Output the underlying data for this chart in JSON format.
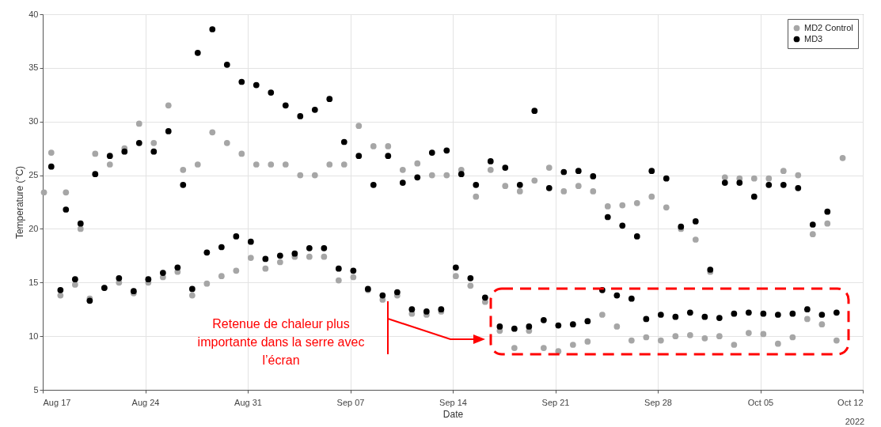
{
  "chart_data": {
    "type": "scatter",
    "xlabel": "Date",
    "ylabel": "Temperature (°C)",
    "xlim": [
      "2022-08-17",
      "2022-10-12"
    ],
    "xticks": [
      {
        "value": "2022-08-17",
        "label": "Aug 17"
      },
      {
        "value": "2022-08-24",
        "label": "Aug 24"
      },
      {
        "value": "2022-08-31",
        "label": "Aug 31"
      },
      {
        "value": "2022-09-07",
        "label": "Sep 07"
      },
      {
        "value": "2022-09-14",
        "label": "Sep 14"
      },
      {
        "value": "2022-09-21",
        "label": "Sep 21"
      },
      {
        "value": "2022-09-28",
        "label": "Sep 28"
      },
      {
        "value": "2022-10-05",
        "label": "Oct 05"
      },
      {
        "value": "2022-10-12",
        "label": "Oct 12"
      }
    ],
    "ylim": [
      5,
      40
    ],
    "yticks": [
      5,
      10,
      15,
      20,
      25,
      30,
      35,
      40
    ],
    "grid": true,
    "legend": "top right",
    "marker": "circle",
    "series": [
      {
        "name": "MD2 Control",
        "color": "#a6a6a6",
        "x": [
          "2022-08-17T02:00",
          "2022-08-17T14:00",
          "2022-08-18T05:00",
          "2022-08-18T14:00",
          "2022-08-19T05:00",
          "2022-08-19T14:00",
          "2022-08-20T05:00",
          "2022-08-20T14:00",
          "2022-08-21T05:00",
          "2022-08-21T14:00",
          "2022-08-22T05:00",
          "2022-08-22T14:00",
          "2022-08-23T05:00",
          "2022-08-23T14:00",
          "2022-08-24T05:00",
          "2022-08-24T14:00",
          "2022-08-25T05:00",
          "2022-08-25T14:00",
          "2022-08-26T05:00",
          "2022-08-26T14:00",
          "2022-08-27T05:00",
          "2022-08-27T14:00",
          "2022-08-28T05:00",
          "2022-08-28T14:00",
          "2022-08-29T05:00",
          "2022-08-29T14:00",
          "2022-08-30T05:00",
          "2022-08-30T14:00",
          "2022-08-31T05:00",
          "2022-08-31T14:00",
          "2022-09-01T05:00",
          "2022-09-01T14:00",
          "2022-09-02T05:00",
          "2022-09-02T14:00",
          "2022-09-03T05:00",
          "2022-09-03T14:00",
          "2022-09-04T05:00",
          "2022-09-04T14:00",
          "2022-09-05T05:00",
          "2022-09-05T14:00",
          "2022-09-06T05:00",
          "2022-09-06T14:00",
          "2022-09-07T05:00",
          "2022-09-07T14:00",
          "2022-09-08T05:00",
          "2022-09-08T14:00",
          "2022-09-09T05:00",
          "2022-09-09T14:00",
          "2022-09-10T05:00",
          "2022-09-10T14:00",
          "2022-09-11T05:00",
          "2022-09-11T14:00",
          "2022-09-12T05:00",
          "2022-09-12T14:00",
          "2022-09-13T05:00",
          "2022-09-13T14:00",
          "2022-09-14T05:00",
          "2022-09-14T14:00",
          "2022-09-15T05:00",
          "2022-09-15T14:00",
          "2022-09-16T05:00",
          "2022-09-16T14:00",
          "2022-09-17T05:00",
          "2022-09-17T14:00",
          "2022-09-18T05:00",
          "2022-09-18T14:00",
          "2022-09-19T05:00",
          "2022-09-19T14:00",
          "2022-09-20T05:00",
          "2022-09-20T14:00",
          "2022-09-21T05:00",
          "2022-09-21T14:00",
          "2022-09-22T05:00",
          "2022-09-22T14:00",
          "2022-09-23T05:00",
          "2022-09-23T14:00",
          "2022-09-24T05:00",
          "2022-09-24T14:00",
          "2022-09-25T05:00",
          "2022-09-25T14:00",
          "2022-09-26T05:00",
          "2022-09-26T14:00",
          "2022-09-27T05:00",
          "2022-09-27T14:00",
          "2022-09-28T05:00",
          "2022-09-28T14:00",
          "2022-09-29T05:00",
          "2022-09-29T14:00",
          "2022-09-30T05:00",
          "2022-09-30T14:00",
          "2022-10-01T05:00",
          "2022-10-01T14:00",
          "2022-10-02T05:00",
          "2022-10-02T14:00",
          "2022-10-03T05:00",
          "2022-10-03T14:00",
          "2022-10-04T05:00",
          "2022-10-04T14:00",
          "2022-10-05T05:00",
          "2022-10-05T14:00",
          "2022-10-06T05:00",
          "2022-10-06T14:00",
          "2022-10-07T05:00",
          "2022-10-07T14:00",
          "2022-10-08T05:00",
          "2022-10-08T14:00",
          "2022-10-09T05:00",
          "2022-10-09T14:00",
          "2022-10-10T05:00",
          "2022-10-10T15:00"
        ],
        "values": [
          23.4,
          27.1,
          13.8,
          23.4,
          14.8,
          20,
          13.5,
          27.0,
          14.5,
          26.0,
          15.0,
          27.5,
          14.0,
          29.8,
          15.0,
          28.0,
          15.5,
          31.5,
          16.0,
          25.5,
          13.8,
          26.0,
          14.9,
          29.0,
          15.6,
          28.0,
          16.1,
          27.0,
          17.3,
          26.0,
          16.3,
          26,
          16.9,
          26,
          17.4,
          25,
          17.4,
          25,
          17.4,
          26,
          15.2,
          26,
          15.5,
          29.6,
          14.3,
          27.7,
          13.4,
          27.7,
          13.8,
          25.5,
          12.1,
          26.1,
          12.0,
          25,
          12.3,
          25,
          15.6,
          25.5,
          14.7,
          23,
          13.2,
          25.5,
          10.5,
          24,
          8.9,
          23.5,
          10.5,
          24.5,
          8.9,
          25.7,
          8.6,
          23.5,
          9.2,
          24,
          9.5,
          23.5,
          12.0,
          22.1,
          10.9,
          22.2,
          9.6,
          22.4,
          9.9,
          23,
          9.6,
          22,
          10.0,
          20,
          10.1,
          19,
          9.8,
          16,
          10.0,
          24.8,
          9.2,
          24.7,
          10.3,
          24.7,
          10.2,
          24.7,
          9.3,
          25.4,
          9.9,
          25.0,
          11.6,
          19.5,
          11.1,
          20.5,
          9.6,
          26.6
        ]
      },
      {
        "name": "MD3",
        "color": "#000000",
        "x": [
          "2022-08-17T14:00",
          "2022-08-18T05:00",
          "2022-08-18T14:00",
          "2022-08-19T05:00",
          "2022-08-19T14:00",
          "2022-08-20T05:00",
          "2022-08-20T14:00",
          "2022-08-21T05:00",
          "2022-08-21T14:00",
          "2022-08-22T05:00",
          "2022-08-22T14:00",
          "2022-08-23T05:00",
          "2022-08-23T14:00",
          "2022-08-24T05:00",
          "2022-08-24T14:00",
          "2022-08-25T05:00",
          "2022-08-25T14:00",
          "2022-08-26T05:00",
          "2022-08-26T14:00",
          "2022-08-27T05:00",
          "2022-08-27T14:00",
          "2022-08-28T05:00",
          "2022-08-28T14:00",
          "2022-08-29T05:00",
          "2022-08-29T14:00",
          "2022-08-30T05:00",
          "2022-08-30T14:00",
          "2022-08-31T05:00",
          "2022-08-31T14:00",
          "2022-09-01T05:00",
          "2022-09-01T14:00",
          "2022-09-02T05:00",
          "2022-09-02T14:00",
          "2022-09-03T05:00",
          "2022-09-03T14:00",
          "2022-09-04T05:00",
          "2022-09-04T14:00",
          "2022-09-05T05:00",
          "2022-09-05T14:00",
          "2022-09-06T05:00",
          "2022-09-06T14:00",
          "2022-09-07T05:00",
          "2022-09-07T14:00",
          "2022-09-08T05:00",
          "2022-09-08T14:00",
          "2022-09-09T05:00",
          "2022-09-09T14:00",
          "2022-09-10T05:00",
          "2022-09-10T14:00",
          "2022-09-11T05:00",
          "2022-09-11T14:00",
          "2022-09-12T05:00",
          "2022-09-12T14:00",
          "2022-09-13T05:00",
          "2022-09-13T14:00",
          "2022-09-14T05:00",
          "2022-09-14T14:00",
          "2022-09-15T05:00",
          "2022-09-15T14:00",
          "2022-09-16T05:00",
          "2022-09-16T14:00",
          "2022-09-17T05:00",
          "2022-09-17T14:00",
          "2022-09-18T05:00",
          "2022-09-18T14:00",
          "2022-09-19T05:00",
          "2022-09-19T14:00",
          "2022-09-20T05:00",
          "2022-09-20T14:00",
          "2022-09-21T05:00",
          "2022-09-21T14:00",
          "2022-09-22T05:00",
          "2022-09-22T14:00",
          "2022-09-23T05:00",
          "2022-09-23T14:00",
          "2022-09-24T05:00",
          "2022-09-24T14:00",
          "2022-09-25T05:00",
          "2022-09-25T14:00",
          "2022-09-26T05:00",
          "2022-09-26T14:00",
          "2022-09-27T05:00",
          "2022-09-27T14:00",
          "2022-09-28T05:00",
          "2022-09-28T14:00",
          "2022-09-29T05:00",
          "2022-09-29T14:00",
          "2022-09-30T05:00",
          "2022-09-30T14:00",
          "2022-10-01T05:00",
          "2022-10-01T14:00",
          "2022-10-02T05:00",
          "2022-10-02T14:00",
          "2022-10-03T05:00",
          "2022-10-03T14:00",
          "2022-10-04T05:00",
          "2022-10-04T14:00",
          "2022-10-05T05:00",
          "2022-10-05T14:00",
          "2022-10-06T05:00",
          "2022-10-06T14:00",
          "2022-10-07T05:00",
          "2022-10-07T14:00",
          "2022-10-08T05:00",
          "2022-10-08T14:00",
          "2022-10-09T05:00",
          "2022-10-09T14:00",
          "2022-10-10T05:00"
        ],
        "values": [
          25.8,
          14.3,
          21.8,
          15.3,
          20.5,
          13.3,
          25.1,
          14.5,
          26.8,
          15.4,
          27.2,
          14.2,
          28.0,
          15.3,
          27.2,
          15.9,
          29.1,
          16.4,
          24.1,
          14.4,
          36.4,
          17.8,
          38.6,
          18.3,
          35.3,
          19.3,
          33.7,
          18.8,
          33.4,
          17.2,
          32.7,
          17.5,
          31.5,
          17.7,
          30.5,
          18.2,
          31.1,
          18.2,
          32.1,
          16.3,
          28.1,
          16.1,
          26.8,
          14.4,
          24.1,
          13.8,
          26.8,
          14.1,
          24.3,
          12.5,
          24.8,
          12.3,
          27.1,
          12.5,
          27.3,
          16.4,
          25.1,
          15.4,
          24.1,
          13.6,
          26.3,
          10.9,
          25.7,
          10.7,
          24.1,
          10.9,
          31.0,
          11.5,
          23.8,
          11.0,
          25.3,
          11.1,
          25.4,
          11.4,
          24.9,
          14.3,
          21.1,
          13.8,
          20.3,
          13.5,
          19.3,
          11.6,
          25.4,
          12.0,
          24.7,
          11.8,
          20.2,
          12.2,
          20.7,
          11.8,
          16.2,
          11.7,
          24.3,
          12.1,
          24.3,
          12.2,
          23.0,
          12.1,
          24.1,
          12.0,
          24.1,
          12.1,
          23.8,
          12.5,
          20.4,
          12.0,
          21.6,
          12.2
        ]
      }
    ],
    "annotations": [
      "Retenue de chaleur plus\nimportante dans la serre avec\nl’écran",
      "2022"
    ]
  }
}
